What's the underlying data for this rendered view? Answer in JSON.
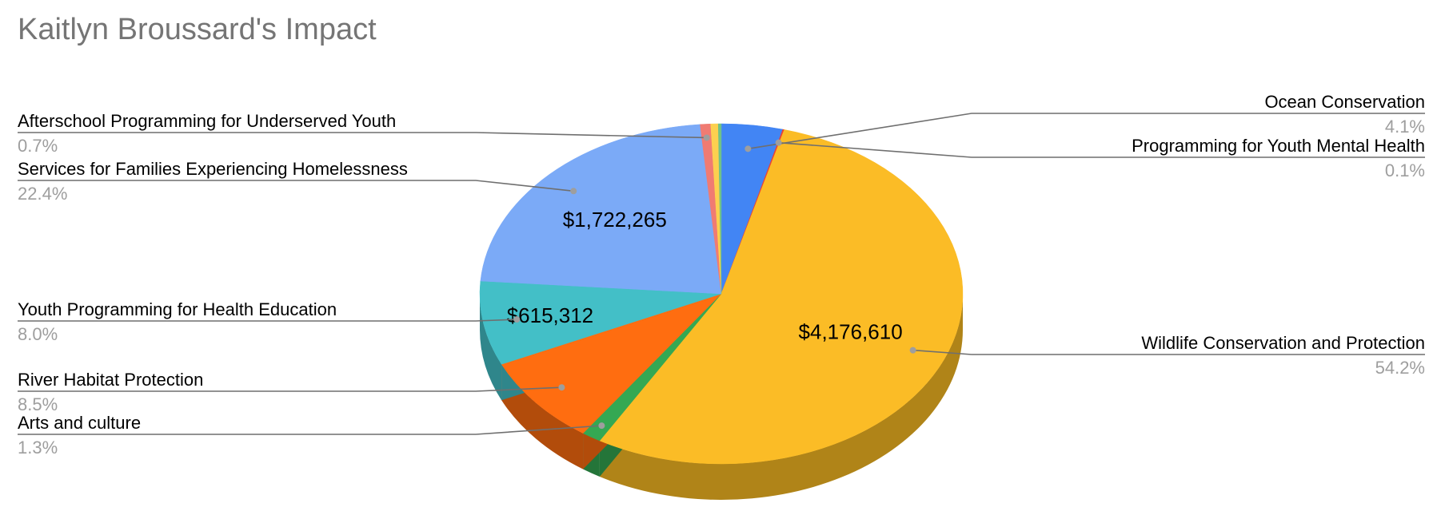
{
  "chart_data": {
    "type": "pie",
    "style": "3d",
    "title": "Kaitlyn Broussard's Impact",
    "legend": "none",
    "slices": [
      {
        "name": "Ocean Conservation",
        "percent": 4.1,
        "color": "#4285f4",
        "side_color": "#2e5daa"
      },
      {
        "name": "Programming for Youth Mental Health",
        "percent": 0.1,
        "color": "#ea4335",
        "side_color": "#a32f25"
      },
      {
        "name": "Wildlife Conservation and Protection",
        "percent": 54.2,
        "value_label": "$4,176,610",
        "color": "#fbbc26",
        "side_color": "#b08418"
      },
      {
        "name": "Arts and culture",
        "percent": 1.3,
        "color": "#34a853",
        "side_color": "#247539"
      },
      {
        "name": "River Habitat Protection",
        "percent": 8.5,
        "color": "#ff6d10",
        "side_color": "#b24c0b"
      },
      {
        "name": "Youth Programming for Health Education",
        "percent": 8.0,
        "value_label": "$615,312",
        "color": "#43bfc7",
        "side_color": "#2f868b"
      },
      {
        "name": "Services for Families Experiencing Homelessness",
        "percent": 22.4,
        "value_label": "$1,722,265",
        "color": "#7baaf7",
        "side_color": "#5677ad"
      },
      {
        "name": "Afterschool Programming for Underserved Youth",
        "percent": 0.7,
        "color": "#f07b72",
        "side_color": "#a8564f"
      },
      {
        "name": "",
        "percent": 0.5,
        "color": "#fcd04f",
        "side_color": "#b09237"
      },
      {
        "name": "",
        "percent": 0.2,
        "color": "#71c287",
        "side_color": "#4f885e"
      }
    ]
  }
}
